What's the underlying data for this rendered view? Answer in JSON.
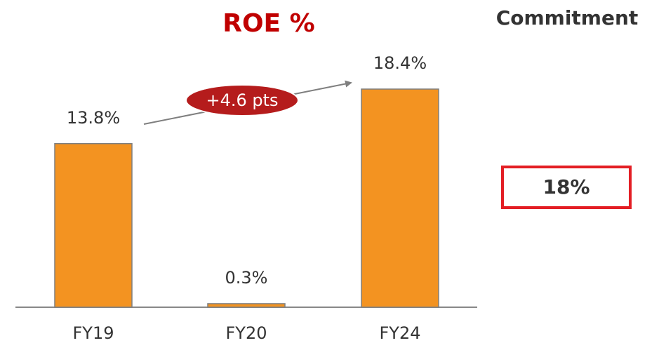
{
  "chart_data": {
    "type": "bar",
    "title": "ROE %",
    "categories": [
      "FY19",
      "FY20",
      "FY24"
    ],
    "values": [
      13.8,
      0.3,
      18.4
    ],
    "value_labels": [
      "13.8%",
      "0.3%",
      "18.4%"
    ],
    "color": "#f39321",
    "annotation": "+4.6 pts",
    "commitment": {
      "title": "Commitment",
      "value": "18%"
    }
  }
}
